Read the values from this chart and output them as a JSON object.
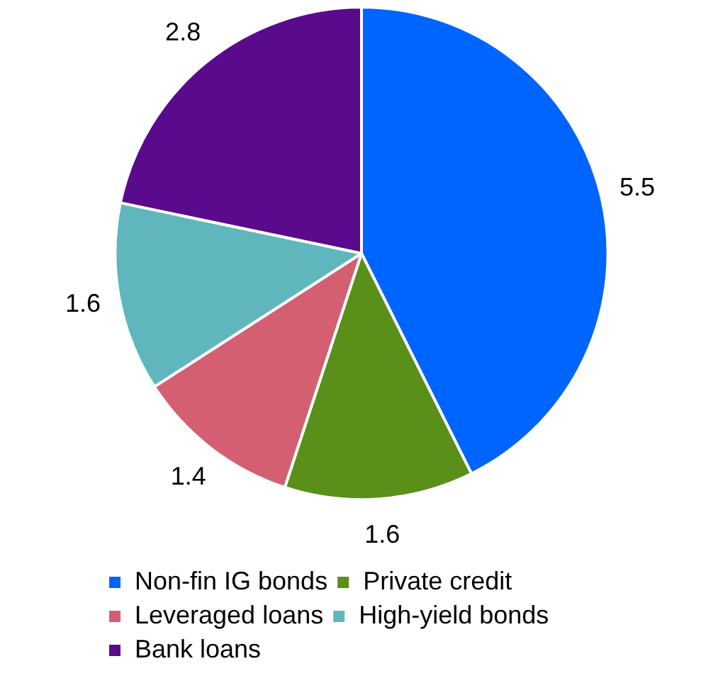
{
  "chart_data": {
    "type": "pie",
    "categories": [
      "Non-fin IG bonds",
      "Private credit",
      "Leveraged loans",
      "High-yield bonds",
      "Bank loans"
    ],
    "values": [
      5.5,
      1.6,
      1.4,
      1.6,
      2.8
    ],
    "colors": [
      "#0064ff",
      "#5a8f1a",
      "#d45f73",
      "#5fb7bd",
      "#5a0a8c"
    ],
    "data_labels": true,
    "legend": "bottom"
  }
}
